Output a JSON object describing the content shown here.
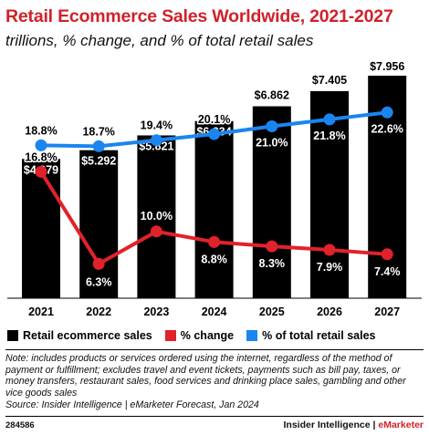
{
  "header": {
    "title": "Retail Ecommerce Sales Worldwide, 2021-2027",
    "subtitle": "trillions, % change, and % of total retail sales"
  },
  "colors": {
    "bars": "#000000",
    "change_line": "#e1222a",
    "share_line": "#1a85f0",
    "title": "#d1212a"
  },
  "chart_data": {
    "type": "bar",
    "categories": [
      "2021",
      "2022",
      "2023",
      "2024",
      "2025",
      "2026",
      "2027"
    ],
    "series": [
      {
        "name": "Retail ecommerce sales",
        "type": "bar",
        "values": [
          4.979,
          5.292,
          5.821,
          6.334,
          6.862,
          7.405,
          7.956
        ],
        "labels": [
          "$4.979",
          "$5.292",
          "$5.821",
          "$6.334",
          "$6.862",
          "$7.405",
          "$7.956"
        ]
      },
      {
        "name": "% change",
        "type": "line",
        "values": [
          16.8,
          6.3,
          10.0,
          8.8,
          8.3,
          7.9,
          7.4
        ],
        "labels": [
          "16.8%",
          "6.3%",
          "10.0%",
          "8.8%",
          "8.3%",
          "7.9%",
          "7.4%"
        ]
      },
      {
        "name": "% of total retail sales",
        "type": "line",
        "values": [
          18.8,
          18.7,
          19.4,
          20.1,
          21.0,
          21.8,
          22.6
        ],
        "labels": [
          "18.8%",
          "18.7%",
          "19.4%",
          "20.1%",
          "21.0%",
          "21.8%",
          "22.6%"
        ]
      }
    ],
    "legend_position": "bottom",
    "grid": false
  },
  "legend": {
    "items": [
      {
        "label": "Retail ecommerce sales",
        "color": "#000000"
      },
      {
        "label": "% change",
        "color": "#e1222a"
      },
      {
        "label": "% of total retail sales",
        "color": "#1a85f0"
      }
    ]
  },
  "footer": {
    "note": "Note: includes products or services ordered using the internet, regardless of the method of payment or fulfillment; excludes travel and event tickets, payments such as bill pay, taxes, or money transfers, restaurant sales, food services and drinking place sales, gambling and other vice goods sales",
    "source": "Source: Insider Intelligence | eMarketer Forecast, Jan 2024",
    "chart_id": "284586",
    "brand_main": "Insider Intelligence | ",
    "brand_accent": "eMarketer"
  }
}
